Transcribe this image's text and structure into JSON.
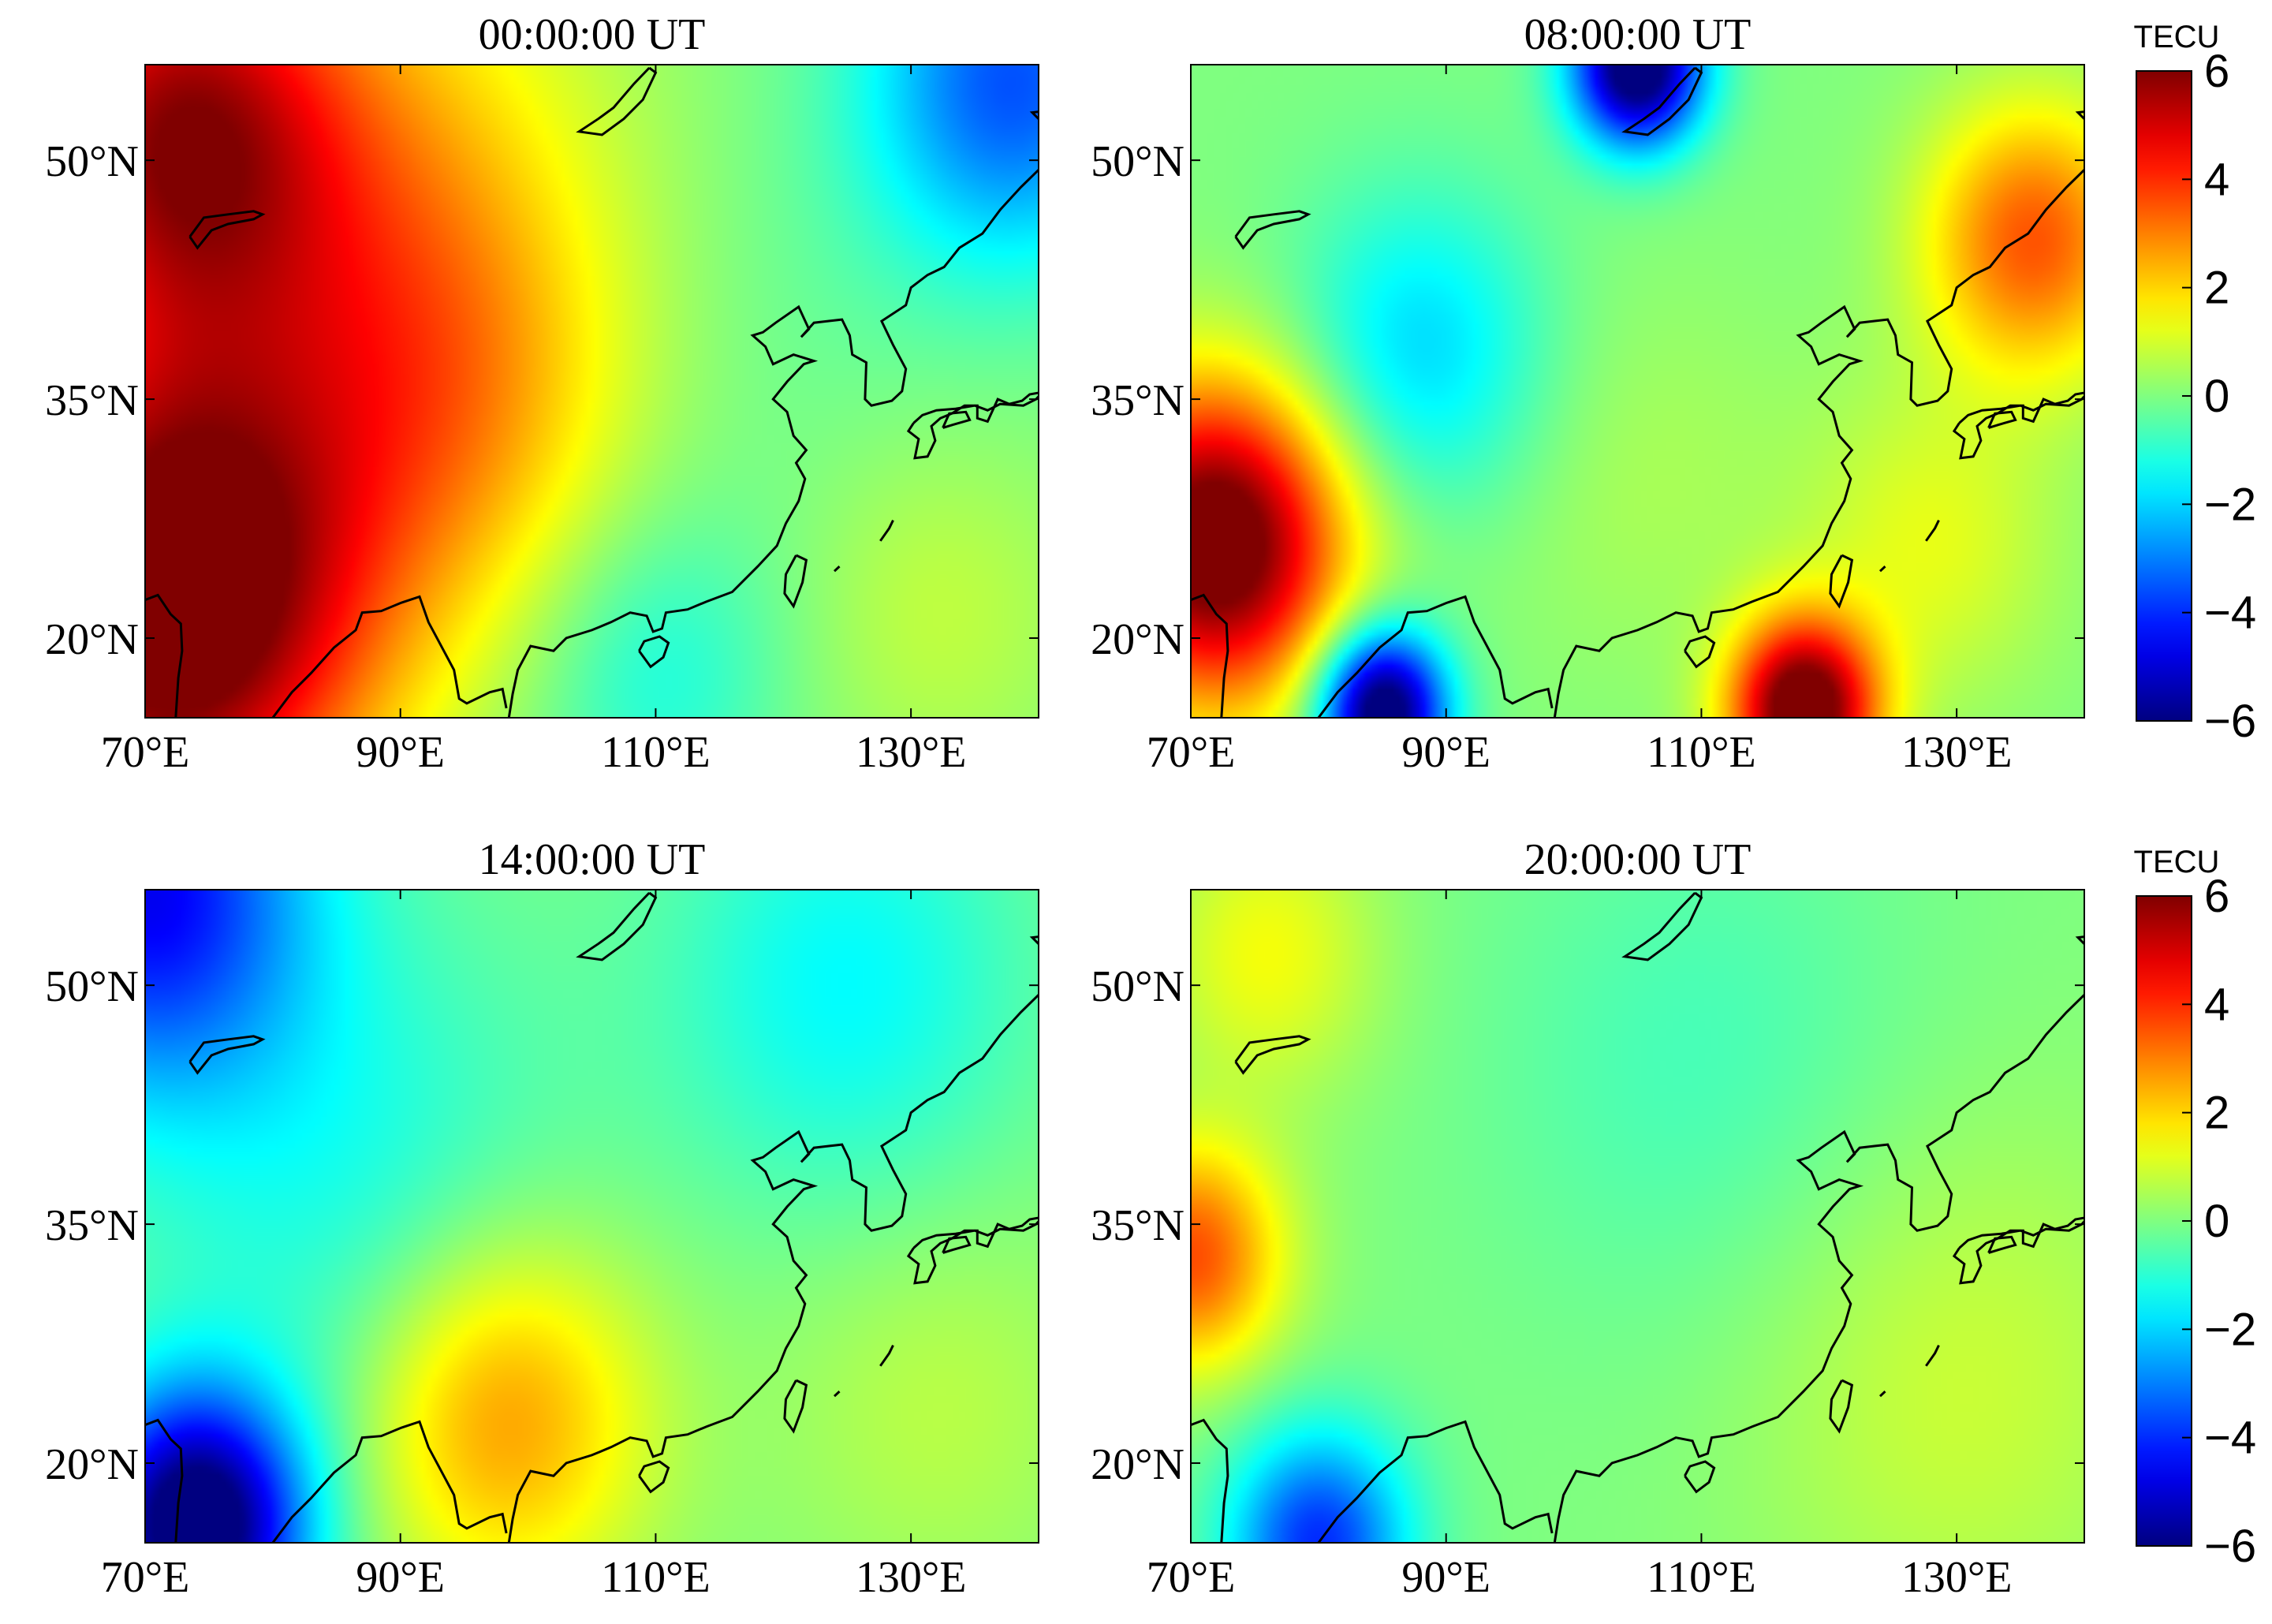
{
  "figure": {
    "type": "heatmap-map-grid"
  },
  "colorbar": {
    "unit_label": "TECU",
    "ticks": [
      6,
      4,
      2,
      0,
      -2,
      -4,
      -6
    ],
    "tick_labels": [
      "6",
      "4",
      "2",
      "0",
      "−2",
      "−4",
      "−6"
    ],
    "range": [
      -6,
      6
    ],
    "colormap": "jet"
  },
  "chart_data": [
    {
      "type": "heatmap",
      "title": "00:00:00 UT",
      "xlim": [
        70,
        140
      ],
      "ylim": [
        15,
        56
      ],
      "xticks": [
        70,
        90,
        110,
        130
      ],
      "xtick_labels": [
        "70°E",
        "90°E",
        "110°E",
        "130°E"
      ],
      "yticks": [
        20,
        35,
        50
      ],
      "ytick_labels": [
        "20°N",
        "35°N",
        "50°N"
      ],
      "colorbar": false,
      "field": [
        {
          "lon": 72,
          "lat": 22,
          "value": 7,
          "spread": 11
        },
        {
          "lon": 72,
          "lat": 52,
          "value": 4.5,
          "spread": 9
        },
        {
          "lon": 86,
          "lat": 46,
          "value": 2.5,
          "spread": 14
        },
        {
          "lon": 94,
          "lat": 34,
          "value": 1.6,
          "spread": 10
        },
        {
          "lon": 138,
          "lat": 55,
          "value": -3.5,
          "spread": 8
        },
        {
          "lon": 132,
          "lat": 22,
          "value": 0.8,
          "spread": 8
        },
        {
          "lon": 110,
          "lat": 18,
          "value": -1.2,
          "spread": 7
        },
        {
          "lon": 120,
          "lat": 40,
          "value": -0.3,
          "spread": 12
        }
      ]
    },
    {
      "type": "heatmap",
      "title": "08:00:00 UT",
      "xlim": [
        70,
        140
      ],
      "ylim": [
        15,
        56
      ],
      "xticks": [
        70,
        90,
        110,
        130
      ],
      "xtick_labels": [
        "70°E",
        "90°E",
        "110°E",
        "130°E"
      ],
      "yticks": [
        20,
        35,
        50
      ],
      "ytick_labels": [
        "20°N",
        "35°N",
        "50°N"
      ],
      "colorbar": true,
      "field": [
        {
          "lon": 105,
          "lat": 56,
          "value": -7,
          "spread": 3.6
        },
        {
          "lon": 88,
          "lat": 38,
          "value": -2,
          "spread": 7
        },
        {
          "lon": 72,
          "lat": 26,
          "value": 7,
          "spread": 7
        },
        {
          "lon": 85,
          "lat": 15.5,
          "value": -7,
          "spread": 3.5
        },
        {
          "lon": 118,
          "lat": 15.5,
          "value": 7,
          "spread": 4
        },
        {
          "lon": 136,
          "lat": 45,
          "value": 3.5,
          "spread": 6
        },
        {
          "lon": 128,
          "lat": 26,
          "value": 1.2,
          "spread": 7
        },
        {
          "lon": 105,
          "lat": 30,
          "value": 0.5,
          "spread": 9
        }
      ]
    },
    {
      "type": "heatmap",
      "title": "14:00:00 UT",
      "xlim": [
        70,
        140
      ],
      "ylim": [
        15,
        56
      ],
      "xticks": [
        70,
        90,
        110,
        130
      ],
      "xtick_labels": [
        "70°E",
        "90°E",
        "110°E",
        "130°E"
      ],
      "yticks": [
        20,
        35,
        50
      ],
      "ytick_labels": [
        "20°N",
        "35°N",
        "50°N"
      ],
      "colorbar": false,
      "field": [
        {
          "lon": 98,
          "lat": 23,
          "value": 2.8,
          "spread": 8
        },
        {
          "lon": 74,
          "lat": 16,
          "value": -7,
          "spread": 6
        },
        {
          "lon": 70,
          "lat": 56,
          "value": -4.5,
          "spread": 9
        },
        {
          "lon": 125,
          "lat": 50,
          "value": -1.5,
          "spread": 10
        },
        {
          "lon": 132,
          "lat": 24,
          "value": 0.7,
          "spread": 9
        },
        {
          "lon": 86,
          "lat": 38,
          "value": -1.2,
          "spread": 12
        }
      ]
    },
    {
      "type": "heatmap",
      "title": "20:00:00 UT",
      "xlim": [
        70,
        140
      ],
      "ylim": [
        15,
        56
      ],
      "xticks": [
        70,
        90,
        110,
        130
      ],
      "xtick_labels": [
        "70°E",
        "90°E",
        "110°E",
        "130°E"
      ],
      "yticks": [
        20,
        35,
        50
      ],
      "ytick_labels": [
        "20°N",
        "35°N",
        "50°N"
      ],
      "colorbar": true,
      "field": [
        {
          "lon": 70,
          "lat": 33,
          "value": 3.6,
          "spread": 5
        },
        {
          "lon": 80,
          "lat": 15,
          "value": -4,
          "spread": 5
        },
        {
          "lon": 110,
          "lat": 45,
          "value": -0.7,
          "spread": 12
        },
        {
          "lon": 130,
          "lat": 25,
          "value": 0.9,
          "spread": 12
        },
        {
          "lon": 76,
          "lat": 52,
          "value": 1.4,
          "spread": 6
        }
      ]
    }
  ]
}
